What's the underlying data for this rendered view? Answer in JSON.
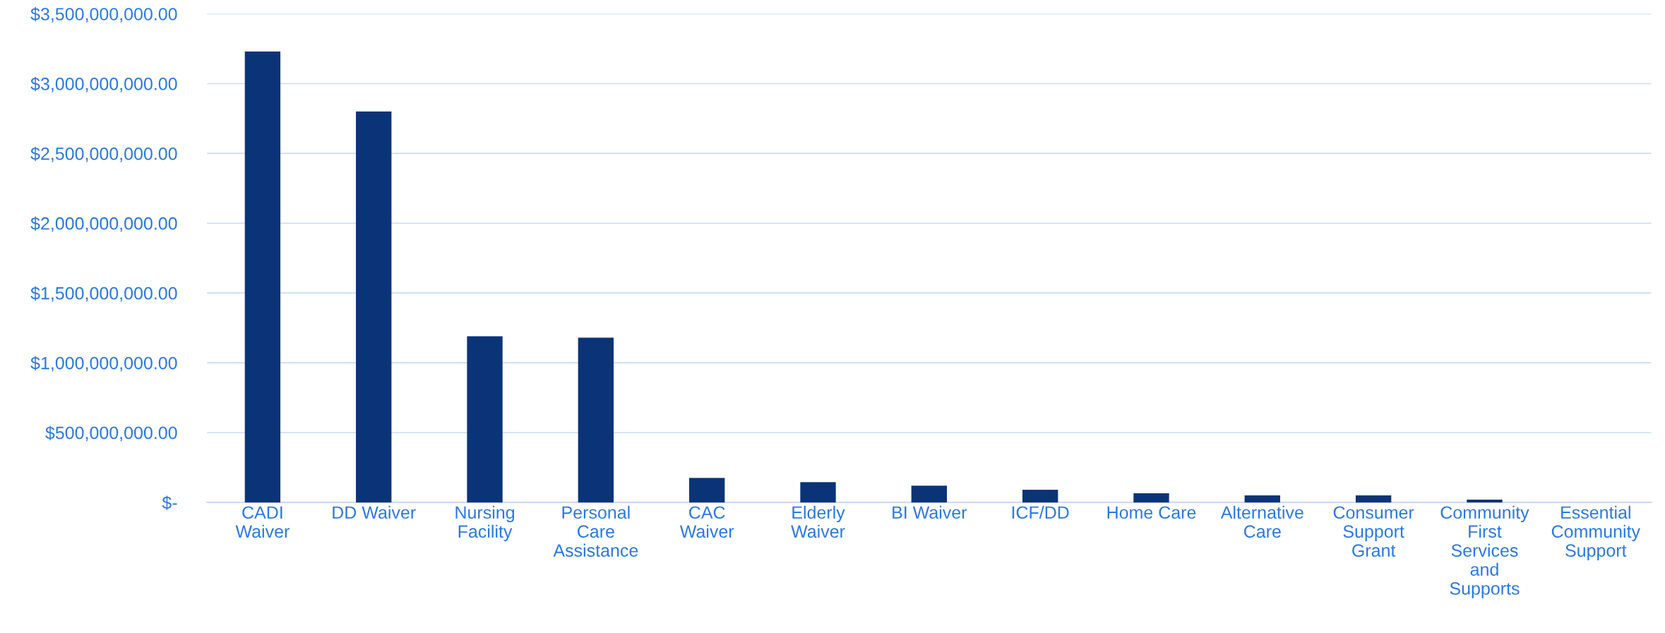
{
  "chart_data": {
    "type": "bar",
    "categories": [
      "CADI Waiver",
      "DD Waiver",
      "Nursing Facility",
      "Personal Care Assistance",
      "CAC Waiver",
      "Elderly Waiver",
      "BI Waiver",
      "ICF/DD",
      "Home Care",
      "Alternative Care",
      "Consumer Support Grant",
      "Community First Services and Supports",
      "Essential Community Support"
    ],
    "values": [
      3230000000,
      2800000000,
      1190000000,
      1180000000,
      175000000,
      145000000,
      120000000,
      90000000,
      65000000,
      50000000,
      50000000,
      20000000,
      0
    ],
    "color": "#0b3478",
    "ylim": [
      0,
      3500000000
    ],
    "yticks": [
      {
        "value": 0,
        "label": "$-"
      },
      {
        "value": 500000000,
        "label": "$500,000,000.00"
      },
      {
        "value": 1000000000,
        "label": "$1,000,000,000.00"
      },
      {
        "value": 1500000000,
        "label": "$1,500,000,000.00"
      },
      {
        "value": 2000000000,
        "label": "$2,000,000,000.00"
      },
      {
        "value": 2500000000,
        "label": "$2,500,000,000.00"
      },
      {
        "value": 3000000000,
        "label": "$3,000,000,000.00"
      },
      {
        "value": 3500000000,
        "label": "$3,500,000,000.00"
      }
    ],
    "grid": "y"
  }
}
